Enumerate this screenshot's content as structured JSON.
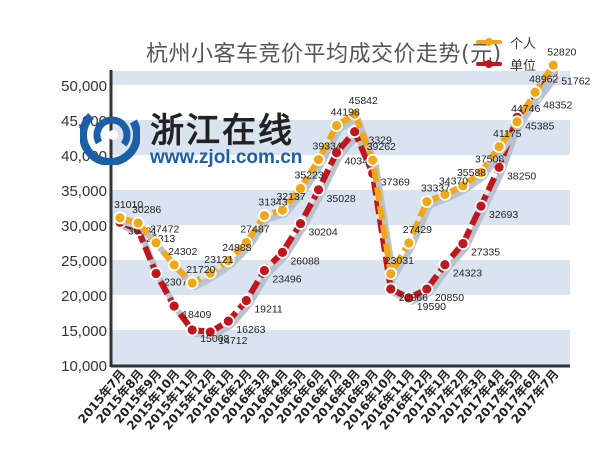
{
  "chart_data": {
    "type": "line",
    "title": "杭州小客车竞价平均成交价走势(元)",
    "xlabel": "",
    "ylabel": "",
    "ylim": [
      10000,
      52000
    ],
    "yticks": [
      10000,
      15000,
      20000,
      25000,
      30000,
      35000,
      40000,
      45000,
      50000
    ],
    "ytick_labels": [
      "10,000",
      "15,000",
      "20,000",
      "25,000",
      "30,000",
      "35,000",
      "40,000",
      "45,000",
      "50,000"
    ],
    "grid": "alternating horizontal bands",
    "legend_position": "top-right",
    "categories": [
      "2015年7月",
      "2015年8月",
      "2015年9月",
      "2015年10月",
      "2015年11月",
      "2015年12月",
      "2016年1月",
      "2016年2月",
      "2016年3月",
      "2016年4月",
      "2016年5月",
      "2016年6月",
      "2016年7月",
      "2016年8月",
      "2016年9月",
      "2016年10月",
      "2016年11月",
      "2016年12月",
      "2017年1月",
      "2017年2月",
      "2017年3月",
      "2017年4月",
      "2017年5月",
      "2017年6月",
      "2017年7月"
    ],
    "series": [
      {
        "name": "个人",
        "color": "#f0a818",
        "values": [
          31010,
          30286,
          27472,
          24302,
          21720,
          23121,
          24888,
          27487,
          31343,
          32137,
          35223,
          39334,
          44198,
          45842,
          39262,
          23031,
          27429,
          33337,
          34370,
          35588,
          37508,
          41175,
          44746,
          48962,
          52820
        ]
      },
      {
        "name": "单位",
        "color": "#c0161c",
        "values": [
          30381,
          29313,
          23073,
          18409,
          15008,
          14712,
          16263,
          19211,
          23496,
          26088,
          30204,
          35028,
          40343,
          43329,
          37369,
          20866,
          19590,
          20850,
          24323,
          27335,
          32693,
          38250,
          45385,
          48352,
          51762
        ]
      }
    ]
  },
  "legend": {
    "items": [
      {
        "label": "个人",
        "color": "#f0a818"
      },
      {
        "label": "单位",
        "color": "#c0161c"
      }
    ]
  },
  "watermark": {
    "name_cn": "浙江在线",
    "url": "www.zjol.com.cn",
    "color": "#1a5fa8"
  },
  "colors": {
    "band": "#d9e4f0",
    "axis": "#333333"
  }
}
